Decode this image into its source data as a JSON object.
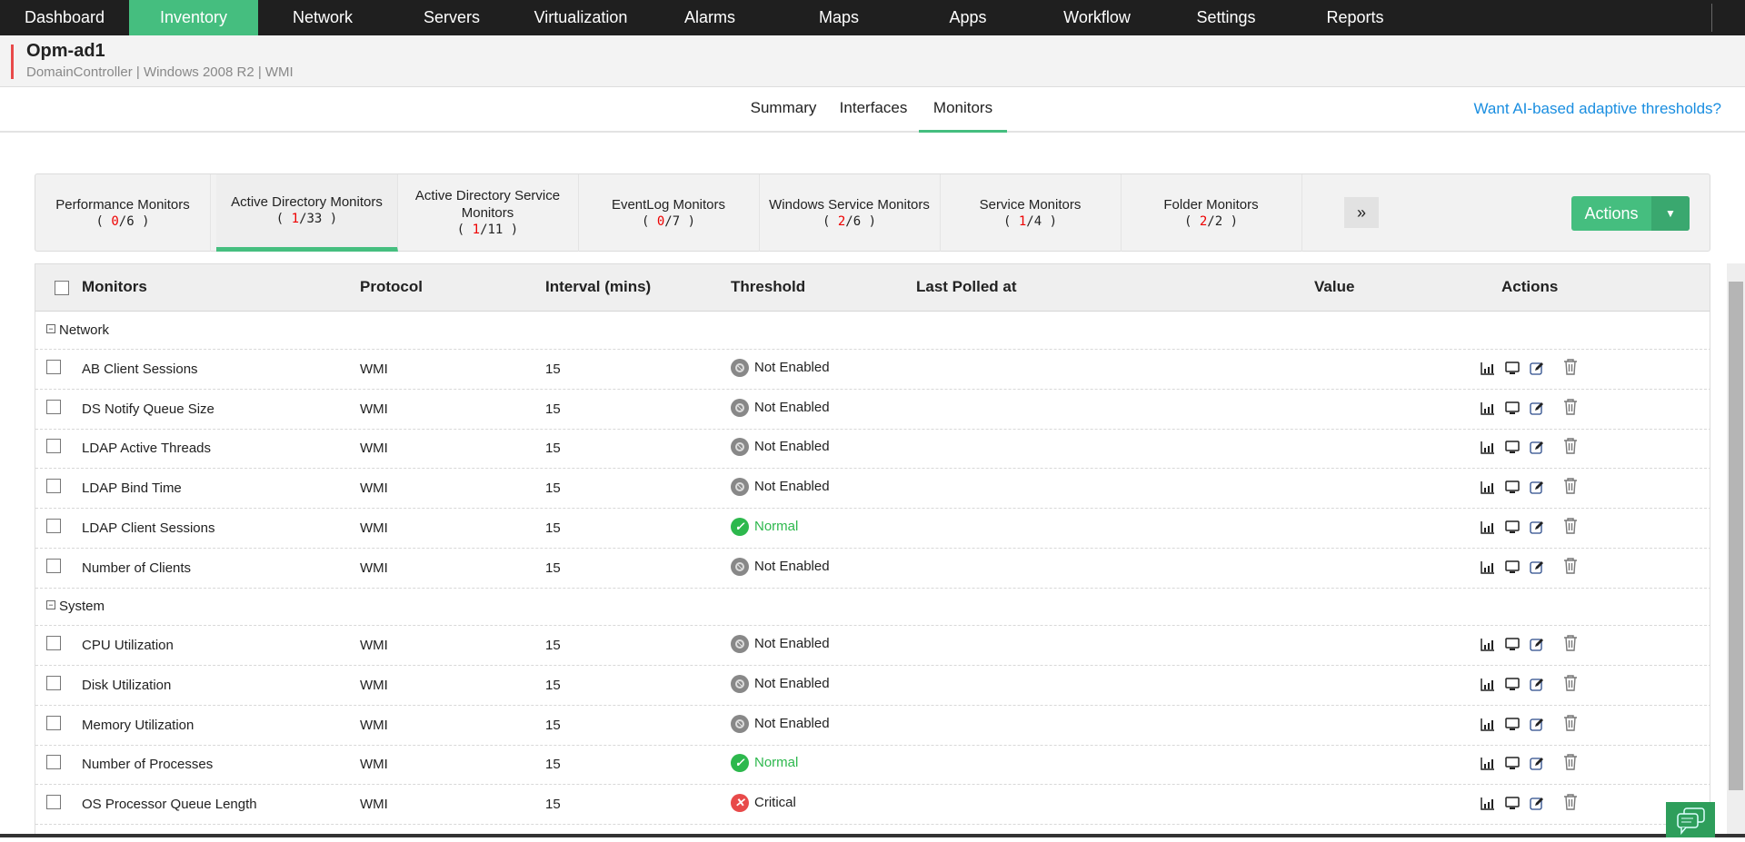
{
  "nav": {
    "items": [
      "Dashboard",
      "Inventory",
      "Network",
      "Servers",
      "Virtualization",
      "Alarms",
      "Maps",
      "Apps",
      "Workflow",
      "Settings",
      "Reports"
    ],
    "active": "Inventory"
  },
  "device": {
    "name": "Opm-ad1",
    "subtitle": "DomainController | Windows 2008 R2  | WMI"
  },
  "tabs": {
    "items": [
      "Summary",
      "Interfaces",
      "Monitors"
    ],
    "active": "Monitors",
    "ai_link": "Want AI-based adaptive thresholds?"
  },
  "monitor_tabs": [
    {
      "label": "Performance Monitors",
      "alarm": "0",
      "total": "6"
    },
    {
      "label": "Active Directory Monitors",
      "alarm": "1",
      "total": "33",
      "active": true
    },
    {
      "label": "Active Directory Service Monitors",
      "alarm": "1",
      "total": "11"
    },
    {
      "label": "EventLog Monitors",
      "alarm": "0",
      "total": "7"
    },
    {
      "label": "Windows Service Monitors",
      "alarm": "2",
      "total": "6"
    },
    {
      "label": "Service Monitors",
      "alarm": "1",
      "total": "4"
    },
    {
      "label": "Folder Monitors",
      "alarm": "2",
      "total": "2"
    }
  ],
  "more_label": "»",
  "actions_label": "Actions",
  "table": {
    "columns": [
      "Monitors",
      "Protocol",
      "Interval (mins)",
      "Threshold",
      "Last Polled at",
      "Value",
      "Actions"
    ],
    "groups": [
      {
        "name": "Network",
        "rows": [
          {
            "monitor": "AB Client Sessions",
            "protocol": "WMI",
            "interval": "15",
            "threshold": "Not Enabled"
          },
          {
            "monitor": "DS Notify Queue Size",
            "protocol": "WMI",
            "interval": "15",
            "threshold": "Not Enabled"
          },
          {
            "monitor": "LDAP Active Threads",
            "protocol": "WMI",
            "interval": "15",
            "threshold": "Not Enabled"
          },
          {
            "monitor": "LDAP Bind Time",
            "protocol": "WMI",
            "interval": "15",
            "threshold": "Not Enabled"
          },
          {
            "monitor": "LDAP Client Sessions",
            "protocol": "WMI",
            "interval": "15",
            "threshold": "Normal"
          },
          {
            "monitor": "Number of Clients",
            "protocol": "WMI",
            "interval": "15",
            "threshold": "Not Enabled"
          }
        ]
      },
      {
        "name": "System",
        "rows": [
          {
            "monitor": "CPU Utilization",
            "protocol": "WMI",
            "interval": "15",
            "threshold": "Not Enabled"
          },
          {
            "monitor": "Disk Utilization",
            "protocol": "WMI",
            "interval": "15",
            "threshold": "Not Enabled"
          },
          {
            "monitor": "Memory Utilization",
            "protocol": "WMI",
            "interval": "15",
            "threshold": "Not Enabled"
          },
          {
            "monitor": "Number of Processes",
            "protocol": "WMI",
            "interval": "15",
            "threshold": "Normal"
          },
          {
            "monitor": "OS Processor Queue Length",
            "protocol": "WMI",
            "interval": "15",
            "threshold": "Critical"
          }
        ]
      }
    ]
  },
  "colors": {
    "accent": "#45be7f",
    "alarm": "#e00000",
    "link": "#1a8ee0",
    "normal": "#2db84d",
    "critical": "#e84a4a"
  }
}
